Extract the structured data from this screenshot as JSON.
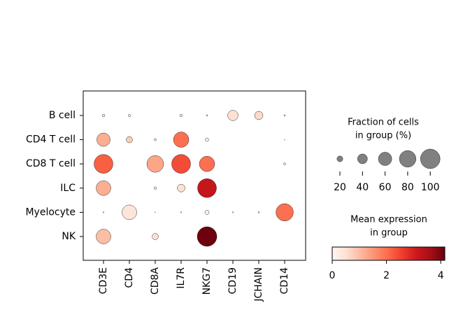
{
  "chart_data": {
    "type": "dotplot",
    "rows": [
      "B cell",
      "CD4 T cell",
      "CD8 T cell",
      "ILC",
      "Myelocyte",
      "NK"
    ],
    "columns": [
      "CD3E",
      "CD4",
      "CD8A",
      "IL7R",
      "NKG7",
      "CD19",
      "JCHAIN",
      "CD14"
    ],
    "fraction": [
      [
        7,
        6,
        null,
        7,
        3,
        43,
        32,
        3
      ],
      [
        60,
        22,
        5,
        72,
        10,
        null,
        null,
        1
      ],
      [
        95,
        null,
        81,
        95,
        72,
        null,
        null,
        5
      ],
      [
        68,
        null,
        7,
        29,
        95,
        null,
        null,
        null
      ],
      [
        2,
        68,
        1,
        2,
        13,
        2,
        3,
        85
      ],
      [
        68,
        null,
        22,
        null,
        100,
        null,
        null,
        null
      ]
    ],
    "expression": [
      [
        0.1,
        0.1,
        null,
        0.1,
        0.1,
        0.5,
        0.6,
        0.1
      ],
      [
        1.2,
        0.8,
        0.1,
        2.0,
        0.1,
        null,
        null,
        0.1
      ],
      [
        2.2,
        null,
        1.3,
        2.4,
        2.0,
        null,
        null,
        0.1
      ],
      [
        1.2,
        null,
        0.1,
        0.5,
        3.2,
        null,
        null,
        null
      ],
      [
        0.1,
        0.4,
        0.1,
        0.1,
        0.1,
        0.1,
        0.1,
        2.0
      ],
      [
        1.0,
        null,
        0.5,
        null,
        4.1,
        null,
        null,
        null
      ]
    ],
    "colormap": [
      "#fff5f0",
      "#fee0d2",
      "#fcbba1",
      "#fc9272",
      "#fb6a4a",
      "#ef3b2c",
      "#cb181d",
      "#a50f15",
      "#67000d"
    ],
    "size_legend": {
      "title": [
        "Fraction of cells",
        "in group (%)"
      ],
      "values": [
        20,
        40,
        60,
        80,
        100
      ],
      "color": "#808080"
    },
    "color_legend": {
      "title": [
        "Mean expression",
        "in group"
      ],
      "lim": [
        0,
        4.15
      ],
      "ticks": [
        0,
        2,
        4
      ]
    }
  }
}
